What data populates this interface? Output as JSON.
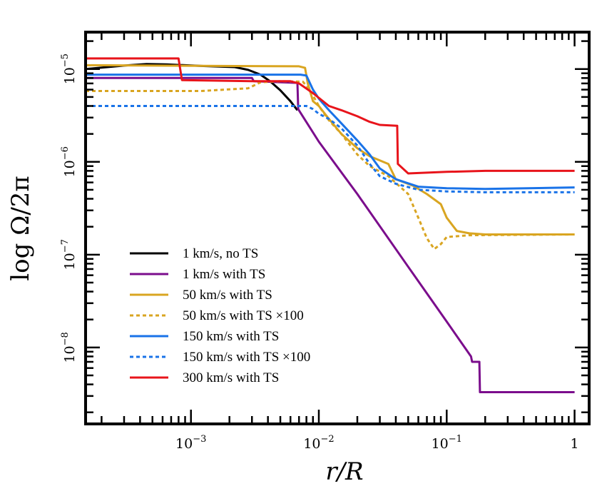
{
  "chart_data": {
    "type": "line",
    "title": "",
    "xlabel": "r/R",
    "ylabel": "log Ω/2π",
    "xscale": "log",
    "yscale": "log",
    "xlim": [
      0.00015,
      1.3
    ],
    "ylim": [
      1.5e-09,
      2.5e-05
    ],
    "grid": false,
    "legend_position": "bottom-left",
    "x_ticks": [
      {
        "value": 0.001,
        "base": "10",
        "exp": "−3"
      },
      {
        "value": 0.01,
        "base": "10",
        "exp": "−2"
      },
      {
        "value": 0.1,
        "base": "10",
        "exp": "−1"
      },
      {
        "value": 1,
        "base": "1",
        "exp": ""
      }
    ],
    "y_ticks": [
      {
        "value": 1e-05,
        "base": "10",
        "exp": "−5"
      },
      {
        "value": 1e-06,
        "base": "10",
        "exp": "−6"
      },
      {
        "value": 1e-07,
        "base": "10",
        "exp": "−7"
      },
      {
        "value": 1e-08,
        "base": "10",
        "exp": "−8"
      }
    ],
    "series": [
      {
        "name": "1 km/s, no TS",
        "color": "#000000",
        "dash": "solid",
        "points": [
          [
            0.00015,
            1e-05
          ],
          [
            0.0003,
            1.09e-05
          ],
          [
            0.00045,
            1.13e-05
          ],
          [
            0.00065,
            1.12e-05
          ],
          [
            0.0012,
            1.08e-05
          ],
          [
            0.0022,
            1.05e-05
          ],
          [
            0.0028,
            9.8e-06
          ],
          [
            0.0035,
            8.7e-06
          ],
          [
            0.0042,
            7.3e-06
          ],
          [
            0.005,
            5.9e-06
          ],
          [
            0.006,
            4.5e-06
          ],
          [
            0.0068,
            3.6e-06
          ]
        ]
      },
      {
        "name": "1 km/s with TS",
        "color": "#7b0d8c",
        "dash": "solid",
        "points": [
          [
            0.00015,
            8e-06
          ],
          [
            0.003,
            8e-06
          ],
          [
            0.0031,
            7.4e-06
          ],
          [
            0.0068,
            7.1e-06
          ],
          [
            0.0069,
            3.7e-06
          ],
          [
            0.01,
            1.65e-06
          ],
          [
            0.02,
            4.5e-07
          ],
          [
            0.05,
            7.4e-08
          ],
          [
            0.1,
            1.9e-08
          ],
          [
            0.155,
            8e-09
          ],
          [
            0.158,
            7e-09
          ],
          [
            0.18,
            7e-09
          ],
          [
            0.182,
            3.3e-09
          ],
          [
            1.0,
            3.3e-09
          ]
        ]
      },
      {
        "name": "50 km/s with TS",
        "color": "#d9a521",
        "dash": "solid",
        "points": [
          [
            0.00015,
            1.1e-05
          ],
          [
            0.007,
            1.07e-05
          ],
          [
            0.0078,
            1.03e-05
          ],
          [
            0.0082,
            7e-06
          ],
          [
            0.009,
            4.5e-06
          ],
          [
            0.01,
            4e-06
          ],
          [
            0.012,
            2.9e-06
          ],
          [
            0.015,
            2e-06
          ],
          [
            0.02,
            1.4e-06
          ],
          [
            0.025,
            1.15e-06
          ],
          [
            0.035,
            9.5e-07
          ],
          [
            0.04,
            6.5e-07
          ],
          [
            0.055,
            5.5e-07
          ],
          [
            0.07,
            4.5e-07
          ],
          [
            0.09,
            3.5e-07
          ],
          [
            0.1,
            2.5e-07
          ],
          [
            0.12,
            1.8e-07
          ],
          [
            0.15,
            1.7e-07
          ],
          [
            0.2,
            1.65e-07
          ],
          [
            1.0,
            1.65e-07
          ]
        ]
      },
      {
        "name": "50 km/s with TS ×100",
        "color": "#d9a521",
        "dash": "dash",
        "points": [
          [
            0.00015,
            5.8e-06
          ],
          [
            0.0012,
            5.8e-06
          ],
          [
            0.0028,
            6.2e-06
          ],
          [
            0.0035,
            7.2e-06
          ],
          [
            0.005,
            7.4e-06
          ],
          [
            0.0075,
            7.3e-06
          ],
          [
            0.0085,
            6e-06
          ],
          [
            0.01,
            4e-06
          ],
          [
            0.012,
            2.8e-06
          ],
          [
            0.015,
            2e-06
          ],
          [
            0.02,
            1.2e-06
          ],
          [
            0.025,
            9e-07
          ],
          [
            0.035,
            7e-07
          ],
          [
            0.05,
            4.5e-07
          ],
          [
            0.06,
            2.5e-07
          ],
          [
            0.07,
            1.5e-07
          ],
          [
            0.08,
            1.15e-07
          ],
          [
            0.09,
            1.3e-07
          ],
          [
            0.1,
            1.55e-07
          ],
          [
            0.15,
            1.62e-07
          ],
          [
            1.0,
            1.65e-07
          ]
        ]
      },
      {
        "name": "150 km/s with TS",
        "color": "#1a73e8",
        "dash": "solid",
        "points": [
          [
            0.00015,
            8.7e-06
          ],
          [
            0.0072,
            8.7e-06
          ],
          [
            0.008,
            8.5e-06
          ],
          [
            0.009,
            6e-06
          ],
          [
            0.01,
            4.8e-06
          ],
          [
            0.012,
            3.6e-06
          ],
          [
            0.015,
            2.6e-06
          ],
          [
            0.02,
            1.7e-06
          ],
          [
            0.025,
            1.2e-06
          ],
          [
            0.03,
            8.5e-07
          ],
          [
            0.04,
            6.5e-07
          ],
          [
            0.06,
            5.4e-07
          ],
          [
            0.1,
            5.2e-07
          ],
          [
            0.2,
            5.1e-07
          ],
          [
            1.0,
            5.3e-07
          ]
        ]
      },
      {
        "name": "150 km/s with TS ×100",
        "color": "#1a73e8",
        "dash": "dash",
        "points": [
          [
            0.00015,
            4e-06
          ],
          [
            0.007,
            4e-06
          ],
          [
            0.008,
            4e-06
          ],
          [
            0.009,
            3.7e-06
          ],
          [
            0.01,
            3.3e-06
          ],
          [
            0.012,
            2.9e-06
          ],
          [
            0.015,
            2.3e-06
          ],
          [
            0.02,
            1.5e-06
          ],
          [
            0.025,
            9.5e-07
          ],
          [
            0.03,
            7e-07
          ],
          [
            0.04,
            5.8e-07
          ],
          [
            0.06,
            5e-07
          ],
          [
            0.1,
            4.8e-07
          ],
          [
            0.2,
            4.7e-07
          ],
          [
            1.0,
            4.7e-07
          ]
        ]
      },
      {
        "name": "300 km/s with TS",
        "color": "#e8141b",
        "dash": "solid",
        "points": [
          [
            0.00015,
            1.3e-05
          ],
          [
            0.0008,
            1.3e-05
          ],
          [
            0.00085,
            7.6e-06
          ],
          [
            0.003,
            7.4e-06
          ],
          [
            0.006,
            7.4e-06
          ],
          [
            0.007,
            7e-06
          ],
          [
            0.009,
            5.5e-06
          ],
          [
            0.012,
            4e-06
          ],
          [
            0.015,
            3.6e-06
          ],
          [
            0.02,
            3.1e-06
          ],
          [
            0.025,
            2.7e-06
          ],
          [
            0.03,
            2.5e-06
          ],
          [
            0.041,
            2.45e-06
          ],
          [
            0.0415,
            9.5e-07
          ],
          [
            0.05,
            7.5e-07
          ],
          [
            0.1,
            7.8e-07
          ],
          [
            0.2,
            8e-07
          ],
          [
            1.0,
            8e-07
          ]
        ]
      }
    ]
  }
}
